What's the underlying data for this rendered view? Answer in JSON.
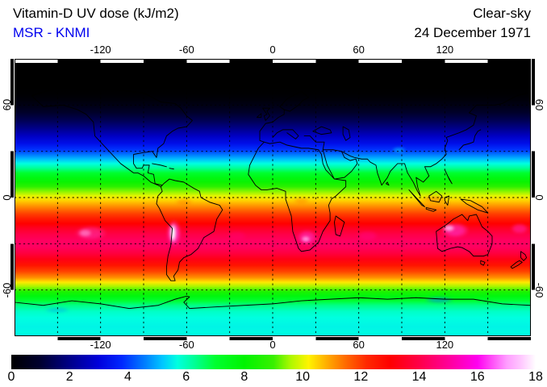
{
  "chart_data": {
    "type": "heatmap",
    "title": "Vitamin-D UV dose (kJ/m2)",
    "source": "MSR - KNMI",
    "source_color": "#0000ee",
    "condition": "Clear-sky",
    "date": "24 December 1971",
    "units": "kJ/m2",
    "projection": "equirectangular",
    "lon_range": [
      -180,
      180
    ],
    "lat_range": [
      -90,
      90
    ],
    "grid_spacing_deg": 30,
    "lon_ticks": [
      -120,
      -60,
      0,
      60,
      120
    ],
    "lat_ticks": [
      60,
      0,
      -60
    ],
    "colorbar": {
      "min": 0,
      "max": 18,
      "ticks": [
        0,
        2,
        4,
        6,
        8,
        10,
        12,
        14,
        16,
        18
      ],
      "colormap": [
        [
          0,
          "#000000"
        ],
        [
          1,
          "#000030"
        ],
        [
          2,
          "#000088"
        ],
        [
          3,
          "#0000dc"
        ],
        [
          3.8,
          "#0028ff"
        ],
        [
          4.6,
          "#0080ff"
        ],
        [
          5.2,
          "#00c8ff"
        ],
        [
          5.7,
          "#00ffe0"
        ],
        [
          6.3,
          "#00ff94"
        ],
        [
          7,
          "#00ff30"
        ],
        [
          8,
          "#00f400"
        ],
        [
          9,
          "#38f000"
        ],
        [
          9.6,
          "#b0f800"
        ],
        [
          10.2,
          "#fff400"
        ],
        [
          10.8,
          "#ffb000"
        ],
        [
          11.5,
          "#ff6800"
        ],
        [
          12.2,
          "#ff2800"
        ],
        [
          13,
          "#ff0000"
        ],
        [
          14,
          "#ff0048"
        ],
        [
          15,
          "#ff0098"
        ],
        [
          16,
          "#ff00f0"
        ],
        [
          17,
          "#ff9cff"
        ],
        [
          17.5,
          "#ffc8ff"
        ],
        [
          18,
          "#ffffff"
        ]
      ]
    },
    "zonal_profile": [
      [
        90,
        0
      ],
      [
        72,
        0
      ],
      [
        67,
        0.05
      ],
      [
        63,
        0.2
      ],
      [
        59,
        0.5
      ],
      [
        55,
        0.9
      ],
      [
        50,
        1.4
      ],
      [
        45,
        2.0
      ],
      [
        40,
        2.7
      ],
      [
        35,
        3.3
      ],
      [
        31,
        3.9
      ],
      [
        28,
        4.5
      ],
      [
        25,
        5.1
      ],
      [
        22,
        5.7
      ],
      [
        19,
        6.3
      ],
      [
        16,
        7.0
      ],
      [
        13,
        7.6
      ],
      [
        10,
        8.2
      ],
      [
        7,
        8.8
      ],
      [
        4,
        9.4
      ],
      [
        1,
        10.0
      ],
      [
        -2,
        10.5
      ],
      [
        -5,
        11.0
      ],
      [
        -8,
        11.5
      ],
      [
        -11,
        12.0
      ],
      [
        -14,
        12.5
      ],
      [
        -17,
        13.0
      ],
      [
        -20,
        13.5
      ],
      [
        -24,
        14.0
      ],
      [
        -28,
        14.3
      ],
      [
        -32,
        14.3
      ],
      [
        -36,
        13.9
      ],
      [
        -40,
        13.3
      ],
      [
        -44,
        12.6
      ],
      [
        -48,
        11.9
      ],
      [
        -52,
        11.1
      ],
      [
        -55,
        10.3
      ],
      [
        -58,
        9.5
      ],
      [
        -61,
        8.5
      ],
      [
        -64,
        7.7
      ],
      [
        -67,
        7.0
      ],
      [
        -70,
        6.4
      ],
      [
        -74,
        5.9
      ],
      [
        -78,
        5.7
      ],
      [
        -84,
        5.6
      ],
      [
        -90,
        5.7
      ]
    ],
    "hotspots": [
      {
        "name": "south-pacific-bright",
        "lon": -127,
        "lat": -23,
        "rx": 16,
        "ry": 7,
        "value": 15,
        "color": "rgba(255,60,190,0.45)"
      },
      {
        "name": "south-pacific-core",
        "lon": -131,
        "lat": -23,
        "rx": 7,
        "ry": 3.5,
        "value": 16,
        "color": "rgba(255,150,220,0.6)"
      },
      {
        "name": "andes-halo",
        "lon": -69,
        "lat": -23,
        "rx": 7,
        "ry": 12,
        "value": 16,
        "color": "rgba(255,60,200,0.8)"
      },
      {
        "name": "andes-white-core",
        "lon": -69.5,
        "lat": -23,
        "rx": 3.2,
        "ry": 9,
        "value": 18,
        "color": "rgba(255,255,255,0.95)"
      },
      {
        "name": "south-atlantic",
        "lon": -25,
        "lat": -25,
        "rx": 10,
        "ry": 5,
        "value": 14.5,
        "color": "rgba(255,0,130,0.3)"
      },
      {
        "name": "southern-africa-halo",
        "lon": 24,
        "lat": -26,
        "rx": 10,
        "ry": 7,
        "value": 16,
        "color": "rgba(255,50,200,0.55)"
      },
      {
        "name": "southern-africa-core",
        "lon": 23,
        "lat": -27,
        "rx": 4.5,
        "ry": 3,
        "value": 17,
        "color": "rgba(255,180,240,0.75)"
      },
      {
        "name": "indian-ocean-bright",
        "lon": 66,
        "lat": -25,
        "rx": 11,
        "ry": 5,
        "value": 15,
        "color": "rgba(255,10,150,0.35)"
      },
      {
        "name": "australia-halo",
        "lon": 127,
        "lat": -21,
        "rx": 14,
        "ry": 7,
        "value": 16,
        "color": "rgba(255,50,210,0.6)"
      },
      {
        "name": "australia-core",
        "lon": 123,
        "lat": -20,
        "rx": 6,
        "ry": 3.2,
        "value": 17.5,
        "color": "rgba(255,190,245,0.8)"
      },
      {
        "name": "fiji-bright",
        "lon": 172,
        "lat": -20,
        "rx": 9,
        "ry": 5,
        "value": 15.5,
        "color": "rgba(255,40,190,0.5)"
      },
      {
        "name": "tibet-bright",
        "lon": 88,
        "lat": 31,
        "rx": 7,
        "ry": 2.5,
        "value": 5.5,
        "color": "rgba(0,220,255,0.5)"
      },
      {
        "name": "antarctic-coast-blue-east",
        "lon": 116,
        "lat": -66.5,
        "rx": 15,
        "ry": 3.2,
        "value": 4.5,
        "color": "rgba(0,120,255,0.5)"
      },
      {
        "name": "antarctic-coast-blue-west",
        "lon": -150,
        "lat": -73,
        "rx": 13,
        "ry": 3,
        "value": 5,
        "color": "rgba(0,150,255,0.35)"
      },
      {
        "name": "itcz-clouds-indonesia",
        "lon": 113,
        "lat": -1,
        "rx": 13,
        "ry": 4,
        "value": 9.5,
        "color": "rgba(255,70,0,0.3)"
      },
      {
        "name": "itcz-clouds-amazon",
        "lon": -62,
        "lat": -3,
        "rx": 9,
        "ry": 3.5,
        "value": 10,
        "color": "rgba(255,90,0,0.28)"
      },
      {
        "name": "itcz-clouds-africa",
        "lon": 20,
        "lat": -2,
        "rx": 8,
        "ry": 3,
        "value": 10,
        "color": "rgba(255,90,0,0.28)"
      }
    ]
  }
}
